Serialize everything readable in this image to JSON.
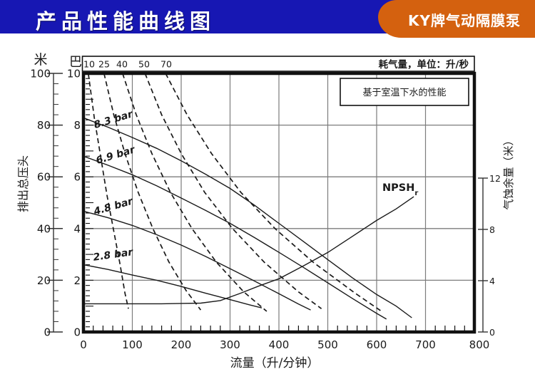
{
  "header": {
    "title": "产品性能曲线图",
    "badge": "KY牌气动隔膜泵",
    "bar_color": "#1717b3",
    "badge_color": "#d4610f"
  },
  "chart_data": {
    "type": "line",
    "performance_note": "基于室温下水的性能",
    "npsh_label": "NPSH",
    "npsh_label_sub": "r",
    "colors": {
      "line": "#1a1a1a",
      "grid": "#7c7c7c"
    },
    "top_axis": {
      "title": "耗气量，单位：升/秒",
      "tick_labels": [
        "10",
        "25",
        "40",
        "50",
        "70"
      ]
    },
    "x_axis": {
      "title": "流量（升/分钟）",
      "min": 0,
      "max": 800,
      "major_tick": 100,
      "minor_tick": 20,
      "tick_labels": [
        "0",
        "100",
        "200",
        "300",
        "400",
        "500",
        "600",
        "700",
        "800"
      ]
    },
    "y_axis_bar": {
      "unit": "巴",
      "min": 0,
      "max": 10,
      "major_tick": 2,
      "tick_labels": [
        "0",
        "2",
        "4",
        "6",
        "8",
        "10"
      ]
    },
    "y_axis_meters": {
      "unit": "米",
      "min": 0,
      "max": 100,
      "major_tick": 20,
      "minor_tick": 4,
      "axis_title": "排出总压头",
      "tick_labels": [
        "0",
        "20",
        "40",
        "60",
        "80",
        "100"
      ]
    },
    "y_axis_right": {
      "title": "气蚀余量（米）",
      "min": 0,
      "max": 12,
      "major_tick": 4,
      "tick_labels": [
        "0",
        "4",
        "8",
        "12"
      ]
    },
    "series": [
      {
        "name": "8.3 bar",
        "group": "pump-curve",
        "axis": "bar",
        "style": "solid",
        "points": [
          [
            0,
            8.28
          ],
          [
            50,
            7.92
          ],
          [
            100,
            7.52
          ],
          [
            150,
            7.1
          ],
          [
            200,
            6.62
          ],
          [
            250,
            6.1
          ],
          [
            300,
            5.55
          ],
          [
            350,
            4.9
          ],
          [
            400,
            4.2
          ],
          [
            450,
            3.5
          ],
          [
            500,
            2.8
          ],
          [
            550,
            2.1
          ],
          [
            600,
            1.45
          ],
          [
            640,
            1.0
          ],
          [
            672,
            0.55
          ]
        ]
      },
      {
        "name": "6.9 bar",
        "group": "pump-curve",
        "axis": "bar",
        "style": "solid",
        "points": [
          [
            0,
            6.8
          ],
          [
            50,
            6.45
          ],
          [
            100,
            6.08
          ],
          [
            150,
            5.65
          ],
          [
            200,
            5.18
          ],
          [
            250,
            4.7
          ],
          [
            300,
            4.2
          ],
          [
            350,
            3.65
          ],
          [
            400,
            3.08
          ],
          [
            450,
            2.5
          ],
          [
            500,
            1.9
          ],
          [
            550,
            1.3
          ],
          [
            600,
            0.72
          ],
          [
            620,
            0.5
          ]
        ]
      },
      {
        "name": "4.8 bar",
        "group": "pump-curve",
        "axis": "bar",
        "style": "solid",
        "points": [
          [
            0,
            4.67
          ],
          [
            50,
            4.42
          ],
          [
            100,
            4.12
          ],
          [
            150,
            3.76
          ],
          [
            200,
            3.36
          ],
          [
            250,
            2.92
          ],
          [
            300,
            2.45
          ],
          [
            350,
            1.97
          ],
          [
            400,
            1.48
          ],
          [
            440,
            1.08
          ],
          [
            465,
            0.85
          ]
        ]
      },
      {
        "name": "2.8 bar",
        "group": "pump-curve",
        "axis": "bar",
        "style": "solid",
        "points": [
          [
            0,
            2.6
          ],
          [
            50,
            2.42
          ],
          [
            100,
            2.2
          ],
          [
            150,
            2.0
          ],
          [
            200,
            1.76
          ],
          [
            250,
            1.5
          ],
          [
            300,
            1.25
          ],
          [
            340,
            1.05
          ],
          [
            365,
            0.93
          ]
        ]
      },
      {
        "name": "10",
        "group": "air-consumption",
        "axis": "bar",
        "style": "dashed",
        "points": [
          [
            10,
            10
          ],
          [
            22,
            8.3
          ],
          [
            35,
            6.8
          ],
          [
            48,
            5.3
          ],
          [
            62,
            3.9
          ],
          [
            75,
            2.6
          ],
          [
            85,
            1.5
          ],
          [
            92,
            0.9
          ]
        ]
      },
      {
        "name": "25",
        "group": "air-consumption",
        "axis": "bar",
        "style": "dashed",
        "points": [
          [
            42,
            10
          ],
          [
            62,
            8.4
          ],
          [
            85,
            6.9
          ],
          [
            112,
            5.4
          ],
          [
            142,
            4.0
          ],
          [
            175,
            2.7
          ],
          [
            210,
            1.6
          ],
          [
            240,
            0.85
          ]
        ]
      },
      {
        "name": "40",
        "group": "air-consumption",
        "axis": "bar",
        "style": "dashed",
        "points": [
          [
            80,
            10
          ],
          [
            108,
            8.4
          ],
          [
            140,
            6.9
          ],
          [
            178,
            5.4
          ],
          [
            222,
            4.0
          ],
          [
            272,
            2.7
          ],
          [
            328,
            1.55
          ],
          [
            375,
            0.8
          ]
        ]
      },
      {
        "name": "50",
        "group": "air-consumption",
        "axis": "bar",
        "style": "dashed",
        "points": [
          [
            126,
            10
          ],
          [
            160,
            8.4
          ],
          [
            200,
            6.9
          ],
          [
            248,
            5.4
          ],
          [
            305,
            4.0
          ],
          [
            370,
            2.7
          ],
          [
            440,
            1.55
          ],
          [
            487,
            0.9
          ]
        ]
      },
      {
        "name": "70",
        "group": "air-consumption",
        "axis": "bar",
        "style": "dashed",
        "points": [
          [
            168,
            10
          ],
          [
            212,
            8.4
          ],
          [
            262,
            6.9
          ],
          [
            322,
            5.4
          ],
          [
            392,
            4.0
          ],
          [
            470,
            2.7
          ],
          [
            556,
            1.5
          ],
          [
            610,
            0.8
          ]
        ]
      },
      {
        "name": "NPSHr",
        "group": "npsh-curve",
        "axis": "right_m",
        "style": "solid",
        "points": [
          [
            0,
            2.2
          ],
          [
            80,
            2.2
          ],
          [
            160,
            2.2
          ],
          [
            240,
            2.25
          ],
          [
            280,
            2.45
          ],
          [
            320,
            3.0
          ],
          [
            360,
            3.6
          ],
          [
            400,
            4.15
          ],
          [
            450,
            5.15
          ],
          [
            500,
            6.2
          ],
          [
            550,
            7.45
          ],
          [
            600,
            8.7
          ],
          [
            640,
            9.6
          ],
          [
            676,
            10.55
          ]
        ]
      }
    ]
  }
}
